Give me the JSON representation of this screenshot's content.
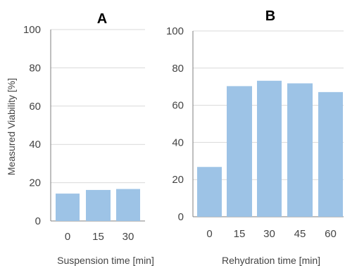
{
  "ylabel": "Measured Viability [%]",
  "chart_data": [
    {
      "type": "bar",
      "title": "A",
      "xlabel": "Suspension time [min]",
      "ylabel": "Measured Viability [%]",
      "categories": [
        "0",
        "15",
        "30"
      ],
      "values": [
        14.3,
        16.2,
        16.7
      ],
      "ylim": [
        0,
        100
      ],
      "yticks": [
        "0",
        "20",
        "40",
        "60",
        "80",
        "100"
      ],
      "grid": true,
      "bar_color": "#9dc3e6"
    },
    {
      "type": "bar",
      "title": "B",
      "xlabel": "Rehydration time [min]",
      "ylabel": "",
      "categories": [
        "0",
        "15",
        "30",
        "45",
        "60"
      ],
      "values": [
        26.8,
        70.3,
        73.2,
        71.8,
        67.1
      ],
      "ylim": [
        0,
        100
      ],
      "yticks": [
        "0",
        "20",
        "40",
        "60",
        "80",
        "100"
      ],
      "grid": true,
      "bar_color": "#9dc3e6"
    }
  ]
}
